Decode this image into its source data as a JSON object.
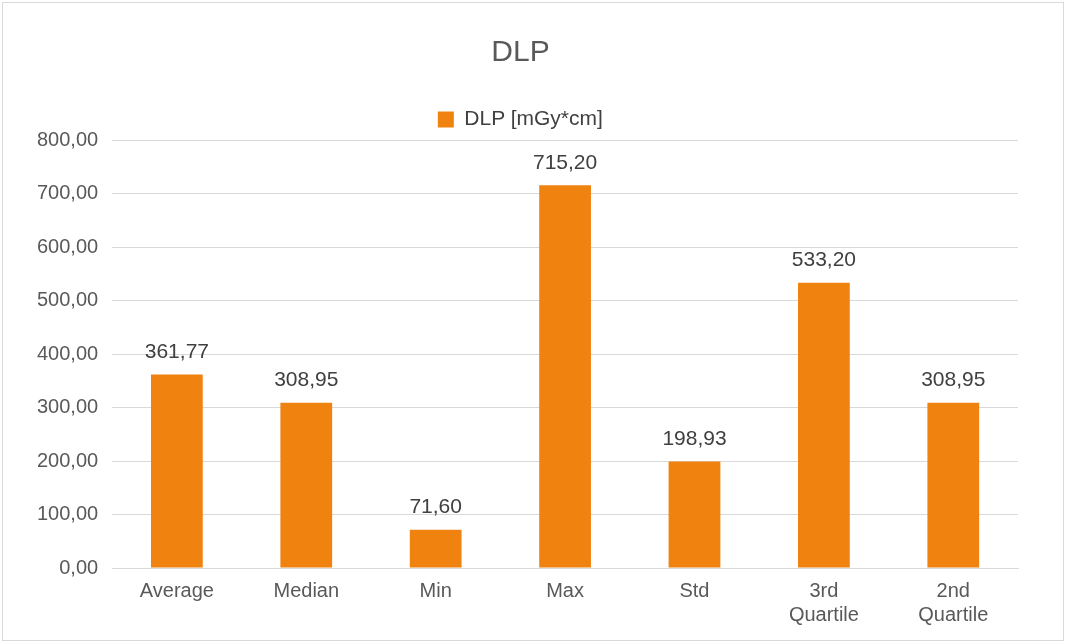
{
  "chart_data": {
    "type": "bar",
    "title": "DLP",
    "categories": [
      "Average",
      "Median",
      "Min",
      "Max",
      "Std",
      "3rd Quartile",
      "2nd Quartile"
    ],
    "series": [
      {
        "name": "DLP [mGy*cm]",
        "color": "#f08210",
        "values": [
          361.77,
          308.95,
          71.6,
          715.2,
          198.93,
          533.2,
          308.95
        ],
        "value_labels": [
          "361,77",
          "308,95",
          "71,60",
          "715,20",
          "198,93",
          "533,20",
          "308,95"
        ]
      }
    ],
    "ylim": [
      0,
      800
    ],
    "yticks": [
      {
        "value": 0,
        "label": "0,00"
      },
      {
        "value": 100,
        "label": "100,00"
      },
      {
        "value": 200,
        "label": "200,00"
      },
      {
        "value": 300,
        "label": "300,00"
      },
      {
        "value": 400,
        "label": "400,00"
      },
      {
        "value": 500,
        "label": "500,00"
      },
      {
        "value": 600,
        "label": "600,00"
      },
      {
        "value": 700,
        "label": "700,00"
      },
      {
        "value": 800,
        "label": "800,00"
      }
    ],
    "grid": "y",
    "legend": "top"
  }
}
